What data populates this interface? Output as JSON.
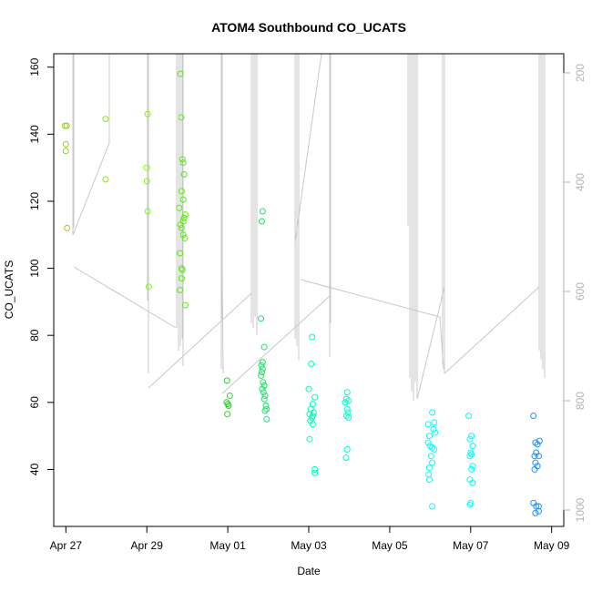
{
  "chart_data": {
    "type": "scatter",
    "title": "ATOM4 Southbound CO_UCATS",
    "xlabel": "Date",
    "ylabel": "CO_UCATS",
    "xlim": [
      -0.3,
      12.3
    ],
    "ylim": [
      23,
      164
    ],
    "x_ticks": [
      {
        "value": 0,
        "label": "Apr 27"
      },
      {
        "value": 2,
        "label": "Apr 29"
      },
      {
        "value": 4,
        "label": "May 01"
      },
      {
        "value": 6,
        "label": "May 03"
      },
      {
        "value": 8,
        "label": "May 05"
      },
      {
        "value": 10,
        "label": "May 07"
      },
      {
        "value": 12,
        "label": "May 09"
      }
    ],
    "y_ticks": [
      40,
      60,
      80,
      100,
      120,
      140,
      160
    ],
    "y2_label": "",
    "y2_lim": [
      1030,
      165
    ],
    "y2_ticks": [
      200,
      400,
      600,
      800,
      1000
    ],
    "series": [
      {
        "name": "CO_UCATS",
        "color_low": "#7fff00",
        "color_high": "#1e90ff",
        "points": [
          [
            -0.02,
            142.5
          ],
          [
            0.02,
            142.5
          ],
          [
            0.0,
            137
          ],
          [
            0.0,
            135
          ],
          [
            0.03,
            112
          ],
          [
            0.98,
            144.5
          ],
          [
            0.98,
            126.5
          ],
          [
            2.02,
            146
          ],
          [
            2.0,
            130
          ],
          [
            2.0,
            126
          ],
          [
            2.02,
            117
          ],
          [
            2.05,
            94.5
          ],
          [
            2.83,
            158
          ],
          [
            2.85,
            145
          ],
          [
            2.88,
            132.5
          ],
          [
            2.9,
            131.5
          ],
          [
            2.92,
            128
          ],
          [
            2.86,
            123
          ],
          [
            2.9,
            120.5
          ],
          [
            2.8,
            118
          ],
          [
            2.95,
            116
          ],
          [
            2.92,
            115
          ],
          [
            2.9,
            114
          ],
          [
            2.83,
            113
          ],
          [
            2.86,
            112
          ],
          [
            2.9,
            110
          ],
          [
            2.94,
            109
          ],
          [
            2.82,
            104.5
          ],
          [
            2.86,
            100
          ],
          [
            2.88,
            99.5
          ],
          [
            2.86,
            97
          ],
          [
            2.82,
            93.5
          ],
          [
            2.95,
            89
          ],
          [
            3.98,
            66.5
          ],
          [
            3.97,
            60
          ],
          [
            4.0,
            59.5
          ],
          [
            4.05,
            62
          ],
          [
            4.02,
            59
          ],
          [
            3.99,
            56.5
          ],
          [
            4.86,
            117
          ],
          [
            4.84,
            114
          ],
          [
            4.82,
            85
          ],
          [
            4.9,
            76.5
          ],
          [
            4.86,
            72
          ],
          [
            4.83,
            71
          ],
          [
            4.86,
            70
          ],
          [
            4.84,
            69
          ],
          [
            4.82,
            68
          ],
          [
            4.87,
            66
          ],
          [
            4.9,
            65
          ],
          [
            4.85,
            64
          ],
          [
            4.88,
            63
          ],
          [
            4.92,
            62
          ],
          [
            4.9,
            61
          ],
          [
            4.94,
            59
          ],
          [
            4.96,
            58
          ],
          [
            4.92,
            57.5
          ],
          [
            4.96,
            55
          ],
          [
            6.08,
            79.5
          ],
          [
            6.06,
            71.5
          ],
          [
            6.0,
            64
          ],
          [
            6.15,
            61.5
          ],
          [
            6.1,
            59.5
          ],
          [
            6.05,
            58
          ],
          [
            6.12,
            57
          ],
          [
            6.02,
            56.5
          ],
          [
            6.1,
            56
          ],
          [
            6.08,
            55.5
          ],
          [
            6.04,
            54.5
          ],
          [
            6.1,
            53.5
          ],
          [
            6.02,
            49
          ],
          [
            6.15,
            40
          ],
          [
            6.15,
            39
          ],
          [
            6.95,
            63
          ],
          [
            6.93,
            61
          ],
          [
            6.98,
            60.5
          ],
          [
            6.9,
            60
          ],
          [
            6.95,
            58
          ],
          [
            6.97,
            57
          ],
          [
            6.93,
            56
          ],
          [
            6.98,
            55.5
          ],
          [
            6.95,
            46
          ],
          [
            6.92,
            43.5
          ],
          [
            8.95,
            53.5
          ],
          [
            8.98,
            50
          ],
          [
            9.05,
            57
          ],
          [
            9.1,
            54
          ],
          [
            9.08,
            52
          ],
          [
            9.12,
            51
          ],
          [
            8.95,
            48
          ],
          [
            9.0,
            47
          ],
          [
            9.05,
            46.5
          ],
          [
            9.1,
            46
          ],
          [
            9.02,
            44
          ],
          [
            9.05,
            42
          ],
          [
            8.98,
            40.5
          ],
          [
            8.96,
            38.5
          ],
          [
            8.98,
            37
          ],
          [
            9.05,
            29
          ],
          [
            9.95,
            56
          ],
          [
            10.02,
            50
          ],
          [
            9.98,
            49
          ],
          [
            10.05,
            47
          ],
          [
            10.0,
            45
          ],
          [
            10.02,
            44.5
          ],
          [
            9.98,
            44
          ],
          [
            10.05,
            41
          ],
          [
            10.02,
            40
          ],
          [
            9.98,
            37
          ],
          [
            10.05,
            36
          ],
          [
            10.0,
            30
          ],
          [
            9.98,
            29.5
          ],
          [
            11.55,
            56
          ],
          [
            11.6,
            48
          ],
          [
            11.65,
            47.5
          ],
          [
            11.7,
            48.5
          ],
          [
            11.62,
            45
          ],
          [
            11.58,
            44
          ],
          [
            11.68,
            44
          ],
          [
            11.6,
            42
          ],
          [
            11.65,
            41
          ],
          [
            11.58,
            40
          ],
          [
            11.55,
            30
          ],
          [
            11.62,
            29
          ],
          [
            11.68,
            29
          ],
          [
            11.6,
            27
          ],
          [
            11.68,
            27.5
          ]
        ]
      }
    ]
  }
}
